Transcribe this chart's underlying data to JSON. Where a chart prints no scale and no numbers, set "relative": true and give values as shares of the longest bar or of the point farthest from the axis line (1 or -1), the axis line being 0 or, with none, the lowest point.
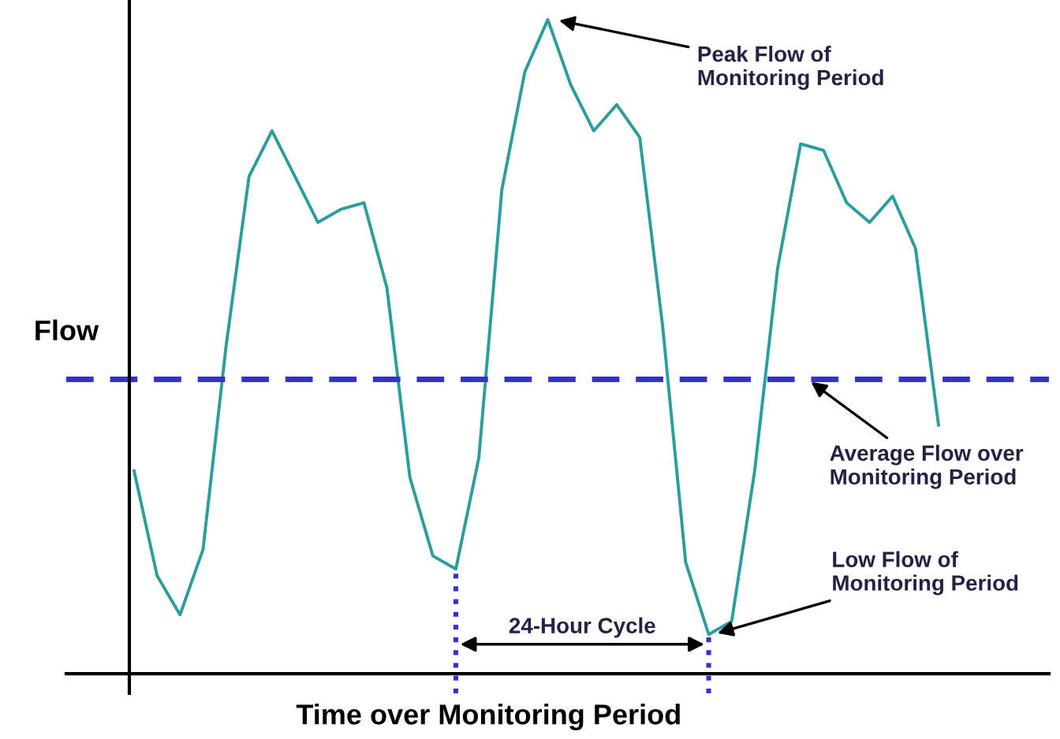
{
  "chart_data": {
    "type": "line",
    "relative": true,
    "xlabel": "Time over Monitoring Period",
    "ylabel": "Flow",
    "categories": [
      null,
      null,
      null,
      null,
      null,
      null,
      null,
      null,
      null,
      null,
      null,
      null,
      null,
      null,
      null,
      null,
      null,
      null,
      null,
      null,
      null,
      null,
      null,
      null,
      null,
      null,
      null,
      null,
      null,
      null,
      null,
      null,
      null,
      null,
      null,
      null
    ],
    "series": [
      {
        "color": "#2a9d9d",
        "values": [
          0.31,
          0.15,
          0.09,
          0.19,
          0.5,
          0.76,
          0.83,
          0.76,
          0.69,
          0.71,
          0.72,
          0.59,
          0.3,
          0.18,
          0.16,
          0.33,
          0.74,
          0.92,
          1.0,
          0.9,
          0.83,
          0.87,
          0.82,
          0.53,
          0.17,
          0.06,
          0.08,
          0.31,
          0.62,
          0.81,
          0.8,
          0.72,
          0.69,
          0.73,
          0.65,
          0.38
        ]
      }
    ],
    "ref_lines": [
      {
        "axis": "y",
        "value": 0.45,
        "color": "#3333cc",
        "line_style": "dashed"
      }
    ],
    "annotations": [
      "Peak Flow of\nMonitoring Period",
      "Average Flow over\nMonitoring Period",
      "Low Flow of\nMonitoring Period",
      "24-Hour Cycle"
    ]
  }
}
